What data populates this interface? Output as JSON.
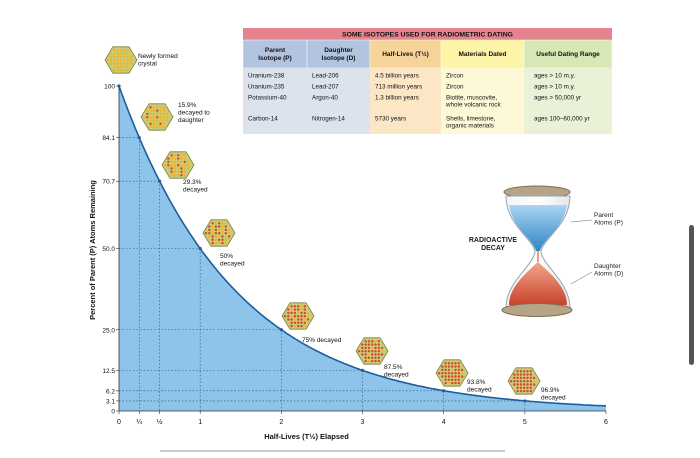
{
  "chart_data": {
    "type": "area",
    "xlabel": "Half-Lives (T½) Elapsed",
    "ylabel": "Percent of Parent (P) Atoms Remaining",
    "xlim": [
      0,
      6
    ],
    "ylim": [
      0,
      100
    ],
    "x_ticks": [
      {
        "value": 0,
        "label": "0"
      },
      {
        "value": 0.25,
        "label": "¼"
      },
      {
        "value": 0.5,
        "label": "½"
      },
      {
        "value": 1,
        "label": "1"
      },
      {
        "value": 2,
        "label": "2"
      },
      {
        "value": 3,
        "label": "3"
      },
      {
        "value": 4,
        "label": "4"
      },
      {
        "value": 5,
        "label": "5"
      },
      {
        "value": 6,
        "label": "6"
      }
    ],
    "y_ticks": [
      {
        "value": 0,
        "label": "0"
      },
      {
        "value": 3.1,
        "label": "3.1"
      },
      {
        "value": 6.2,
        "label": "6.2"
      },
      {
        "value": 12.5,
        "label": "12.5"
      },
      {
        "value": 25.0,
        "label": "25.0"
      },
      {
        "value": 50.0,
        "label": "50.0"
      },
      {
        "value": 70.7,
        "label": "70.7"
      },
      {
        "value": 84.1,
        "label": "84.1"
      },
      {
        "value": 100,
        "label": "100"
      }
    ],
    "curve": {
      "formula": "100 * 0.5^x",
      "fill": "#8ec3ea",
      "stroke": "#1b5f9e"
    },
    "points": [
      {
        "x": 0,
        "y": 100
      },
      {
        "x": 0.25,
        "y": 84.1
      },
      {
        "x": 0.5,
        "y": 70.7
      },
      {
        "x": 1,
        "y": 50.0
      },
      {
        "x": 2,
        "y": 25.0
      },
      {
        "x": 3,
        "y": 12.5
      },
      {
        "x": 4,
        "y": 6.2
      },
      {
        "x": 5,
        "y": 3.1
      }
    ],
    "annotations": [
      {
        "x": 0,
        "y": 100,
        "label": [
          "Newly formed",
          "crystal"
        ],
        "daughter_fraction": 0
      },
      {
        "x": 0.25,
        "y": 84.1,
        "label": [
          "15.9%",
          "decayed to",
          "daughter"
        ],
        "daughter_fraction": 0.159
      },
      {
        "x": 0.5,
        "y": 70.7,
        "label": [
          "29.3%",
          "decayed"
        ],
        "daughter_fraction": 0.293
      },
      {
        "x": 1,
        "y": 50.0,
        "label": [
          "50%",
          "decayed"
        ],
        "daughter_fraction": 0.5
      },
      {
        "x": 2,
        "y": 25.0,
        "label": [
          "75% decayed"
        ],
        "daughter_fraction": 0.75
      },
      {
        "x": 3,
        "y": 12.5,
        "label": [
          "87.5%",
          "decayed"
        ],
        "daughter_fraction": 0.875
      },
      {
        "x": 4,
        "y": 6.2,
        "label": [
          "93.8%",
          "decayed"
        ],
        "daughter_fraction": 0.938
      },
      {
        "x": 5,
        "y": 3.1,
        "label": [
          "96.9%",
          "decayed"
        ],
        "daughter_fraction": 0.969
      }
    ],
    "grid": "dotted guides at marked points",
    "colors": {
      "parent_atom": "#f2b41d",
      "daughter_atom": "#d9452b",
      "crystal": "#c9cb7a"
    }
  },
  "table": {
    "title": "SOME ISOTOPES USED FOR RADIOMETRIC DATING",
    "headers": [
      [
        "Parent",
        "Isotope (P)"
      ],
      [
        "Daughter",
        "Isotope (D)"
      ],
      [
        "Half-Lives (T½)"
      ],
      [
        "Materials Dated"
      ],
      [
        "Useful Dating Range"
      ]
    ],
    "rows": [
      [
        [
          "Uranium-238"
        ],
        [
          "Lead-206"
        ],
        [
          "4.5 billion years"
        ],
        [
          "Zircon"
        ],
        [
          "ages > 10 m.y."
        ]
      ],
      [
        [
          "Uranium-235"
        ],
        [
          "Lead-207"
        ],
        [
          "713 million years"
        ],
        [
          "Zircon"
        ],
        [
          "ages > 10 m.y."
        ]
      ],
      [
        [
          "Potassium-40"
        ],
        [
          "Argon-40"
        ],
        [
          "1.3 billion years"
        ],
        [
          "Biotite, muscovite,",
          "whole volcanic rock"
        ],
        [
          "ages > 50,000 yr"
        ]
      ],
      [
        [
          "Carbon-14"
        ],
        [
          "Nitrogen-14"
        ],
        [
          "5730 years"
        ],
        [
          "Shells, limestone,",
          "organic materials"
        ],
        [
          "ages 100–60,000 yr"
        ]
      ]
    ],
    "colors": {
      "title_bg": "#e5838e",
      "header_bg": [
        "#b2c4df",
        "#b2c4df",
        "#f6d398",
        "#fcf4a6",
        "#d8e8b4"
      ],
      "col_bg": [
        "#dde3ec",
        "#dde3ec",
        "#fbe7c5",
        "#fdf9d6",
        "#e9f1d7"
      ]
    }
  },
  "hourglass": {
    "title": [
      "RADIOACTIVE",
      "DECAY"
    ],
    "parent_label": [
      "Parent",
      "Atoms (P)"
    ],
    "daughter_label": [
      "Daughter",
      "Atoms (D)"
    ],
    "colors": {
      "parent": "#4fa6dc",
      "daughter": "#e05a3c",
      "frame": "#9a8a72"
    }
  }
}
